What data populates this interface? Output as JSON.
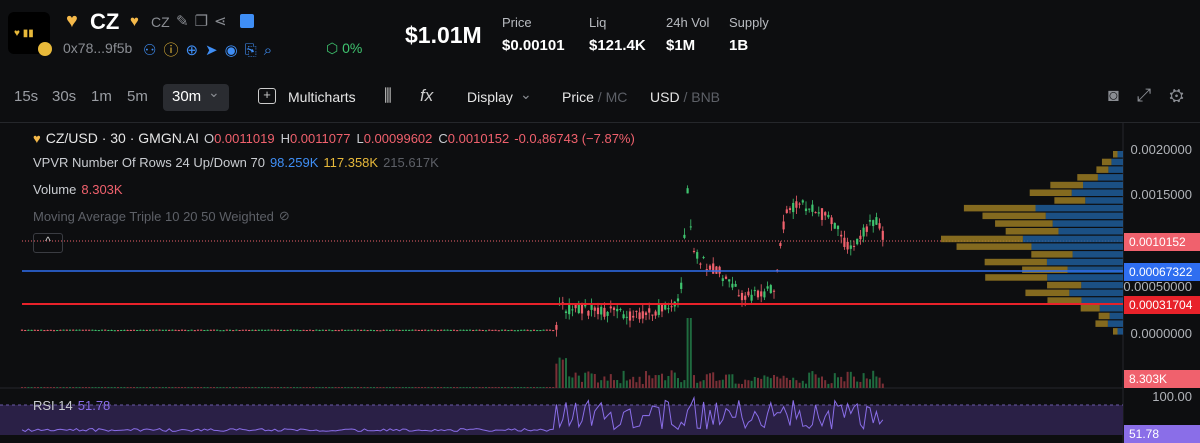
{
  "header": {
    "name": "CZ",
    "ticker": "CZ",
    "address": "0x78...9f5b",
    "change": "0%",
    "market_cap": "$1.01M",
    "stats": [
      {
        "label": "Price",
        "value": "$0.00101"
      },
      {
        "label": "Liq",
        "value": "$121.4K"
      },
      {
        "label": "24h Vol",
        "value": "$1M"
      },
      {
        "label": "Supply",
        "value": "1B"
      }
    ]
  },
  "toolbar": {
    "intervals": [
      "15s",
      "30s",
      "1m",
      "5m",
      "30m"
    ],
    "multicharts": "Multicharts",
    "display": "Display",
    "price_mode": {
      "active": "Price",
      "inactive": "/ MC"
    },
    "currency": {
      "active": "USD",
      "inactive": "/ BNB"
    }
  },
  "chart": {
    "pair": "CZ/USD · 30 · GMGN.AI",
    "ohlc": [
      {
        "key": "O",
        "value": "0.0011019"
      },
      {
        "key": "H",
        "value": "0.0011077"
      },
      {
        "key": "L",
        "value": "0.00099602"
      },
      {
        "key": "C",
        "value": "0.0010152"
      }
    ],
    "change": "-0.0₄86743 (−7.87%)",
    "vpvr": {
      "label": "VPVR Number Of Rows 24 Up/Down 70",
      "up": "98.259K",
      "down": "117.358K",
      "total": "215.617K"
    },
    "volume": {
      "label": "Volume",
      "value": "8.303K"
    },
    "moving_average": "Moving Average Triple 10 20 50 Weighted",
    "price_axis": [
      "0.0020000",
      "0.0015000",
      "0.00050000",
      "0.0000000"
    ],
    "price_tags": {
      "last": "0.0010152",
      "blue_line": "0.00067322",
      "red_line": "0.00031704",
      "volume": "8.303K"
    },
    "rsi": {
      "label": "RSI 14",
      "value": "51.78",
      "axis": "100.00",
      "tag": "51.78"
    }
  }
}
